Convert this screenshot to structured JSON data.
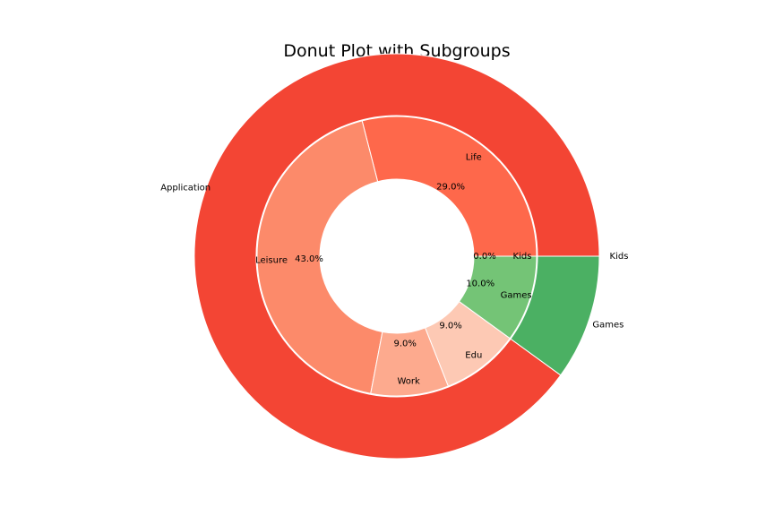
{
  "chart_data": {
    "type": "pie",
    "title": "Donut Plot with Subgroups",
    "outer_ring": [
      {
        "label": "Application",
        "value": 90,
        "color": "#f34534"
      },
      {
        "label": "Games",
        "value": 10,
        "color": "#4bb063"
      },
      {
        "label": "Kids",
        "value": 0,
        "color": "#41ab5d"
      }
    ],
    "inner_ring": [
      {
        "label": "Life",
        "value": 29,
        "pct": "29.0%",
        "color": "#fe684b"
      },
      {
        "label": "Leisure",
        "value": 43,
        "pct": "43.0%",
        "color": "#fc8a6a"
      },
      {
        "label": "Work",
        "value": 9,
        "pct": "9.0%",
        "color": "#fdaa8e"
      },
      {
        "label": "Edu",
        "value": 9,
        "pct": "9.0%",
        "color": "#fdc9b4"
      },
      {
        "label": "Games",
        "value": 10,
        "pct": "10.0%",
        "color": "#74c476"
      },
      {
        "label": "Kids",
        "value": 0,
        "pct": "0.0%",
        "color": "#a1d99b"
      }
    ]
  }
}
